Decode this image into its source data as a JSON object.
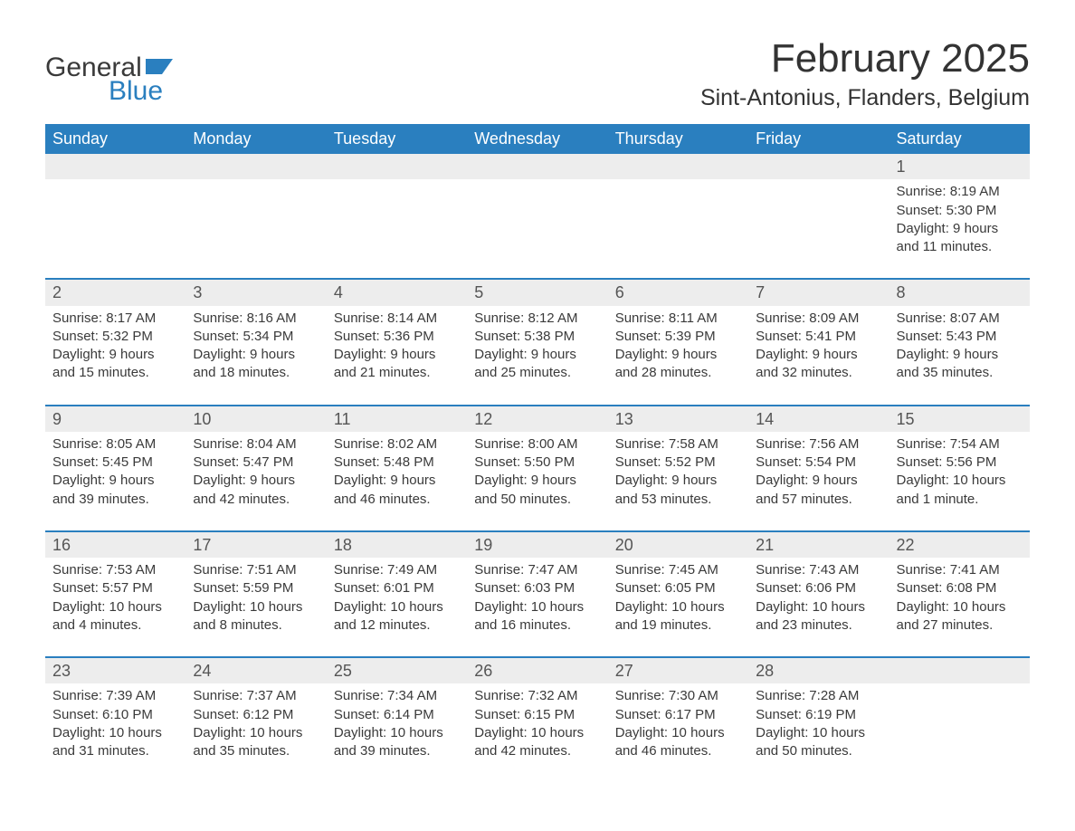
{
  "logo": {
    "text1": "General",
    "text2": "Blue",
    "flag_color": "#2a7fbf"
  },
  "title": "February 2025",
  "location": "Sint-Antonius, Flanders, Belgium",
  "header_bg": "#2a7fbf",
  "header_fg": "#ffffff",
  "daynum_bg": "#ededed",
  "text_color": "#3a3a3a",
  "days_of_week": [
    "Sunday",
    "Monday",
    "Tuesday",
    "Wednesday",
    "Thursday",
    "Friday",
    "Saturday"
  ],
  "weeks": [
    [
      null,
      null,
      null,
      null,
      null,
      null,
      {
        "n": "1",
        "sunrise": "8:19 AM",
        "sunset": "5:30 PM",
        "daylight": "9 hours and 11 minutes."
      }
    ],
    [
      {
        "n": "2",
        "sunrise": "8:17 AM",
        "sunset": "5:32 PM",
        "daylight": "9 hours and 15 minutes."
      },
      {
        "n": "3",
        "sunrise": "8:16 AM",
        "sunset": "5:34 PM",
        "daylight": "9 hours and 18 minutes."
      },
      {
        "n": "4",
        "sunrise": "8:14 AM",
        "sunset": "5:36 PM",
        "daylight": "9 hours and 21 minutes."
      },
      {
        "n": "5",
        "sunrise": "8:12 AM",
        "sunset": "5:38 PM",
        "daylight": "9 hours and 25 minutes."
      },
      {
        "n": "6",
        "sunrise": "8:11 AM",
        "sunset": "5:39 PM",
        "daylight": "9 hours and 28 minutes."
      },
      {
        "n": "7",
        "sunrise": "8:09 AM",
        "sunset": "5:41 PM",
        "daylight": "9 hours and 32 minutes."
      },
      {
        "n": "8",
        "sunrise": "8:07 AM",
        "sunset": "5:43 PM",
        "daylight": "9 hours and 35 minutes."
      }
    ],
    [
      {
        "n": "9",
        "sunrise": "8:05 AM",
        "sunset": "5:45 PM",
        "daylight": "9 hours and 39 minutes."
      },
      {
        "n": "10",
        "sunrise": "8:04 AM",
        "sunset": "5:47 PM",
        "daylight": "9 hours and 42 minutes."
      },
      {
        "n": "11",
        "sunrise": "8:02 AM",
        "sunset": "5:48 PM",
        "daylight": "9 hours and 46 minutes."
      },
      {
        "n": "12",
        "sunrise": "8:00 AM",
        "sunset": "5:50 PM",
        "daylight": "9 hours and 50 minutes."
      },
      {
        "n": "13",
        "sunrise": "7:58 AM",
        "sunset": "5:52 PM",
        "daylight": "9 hours and 53 minutes."
      },
      {
        "n": "14",
        "sunrise": "7:56 AM",
        "sunset": "5:54 PM",
        "daylight": "9 hours and 57 minutes."
      },
      {
        "n": "15",
        "sunrise": "7:54 AM",
        "sunset": "5:56 PM",
        "daylight": "10 hours and 1 minute."
      }
    ],
    [
      {
        "n": "16",
        "sunrise": "7:53 AM",
        "sunset": "5:57 PM",
        "daylight": "10 hours and 4 minutes."
      },
      {
        "n": "17",
        "sunrise": "7:51 AM",
        "sunset": "5:59 PM",
        "daylight": "10 hours and 8 minutes."
      },
      {
        "n": "18",
        "sunrise": "7:49 AM",
        "sunset": "6:01 PM",
        "daylight": "10 hours and 12 minutes."
      },
      {
        "n": "19",
        "sunrise": "7:47 AM",
        "sunset": "6:03 PM",
        "daylight": "10 hours and 16 minutes."
      },
      {
        "n": "20",
        "sunrise": "7:45 AM",
        "sunset": "6:05 PM",
        "daylight": "10 hours and 19 minutes."
      },
      {
        "n": "21",
        "sunrise": "7:43 AM",
        "sunset": "6:06 PM",
        "daylight": "10 hours and 23 minutes."
      },
      {
        "n": "22",
        "sunrise": "7:41 AM",
        "sunset": "6:08 PM",
        "daylight": "10 hours and 27 minutes."
      }
    ],
    [
      {
        "n": "23",
        "sunrise": "7:39 AM",
        "sunset": "6:10 PM",
        "daylight": "10 hours and 31 minutes."
      },
      {
        "n": "24",
        "sunrise": "7:37 AM",
        "sunset": "6:12 PM",
        "daylight": "10 hours and 35 minutes."
      },
      {
        "n": "25",
        "sunrise": "7:34 AM",
        "sunset": "6:14 PM",
        "daylight": "10 hours and 39 minutes."
      },
      {
        "n": "26",
        "sunrise": "7:32 AM",
        "sunset": "6:15 PM",
        "daylight": "10 hours and 42 minutes."
      },
      {
        "n": "27",
        "sunrise": "7:30 AM",
        "sunset": "6:17 PM",
        "daylight": "10 hours and 46 minutes."
      },
      {
        "n": "28",
        "sunrise": "7:28 AM",
        "sunset": "6:19 PM",
        "daylight": "10 hours and 50 minutes."
      },
      null
    ]
  ],
  "labels": {
    "sunrise": "Sunrise: ",
    "sunset": "Sunset: ",
    "daylight": "Daylight: "
  }
}
